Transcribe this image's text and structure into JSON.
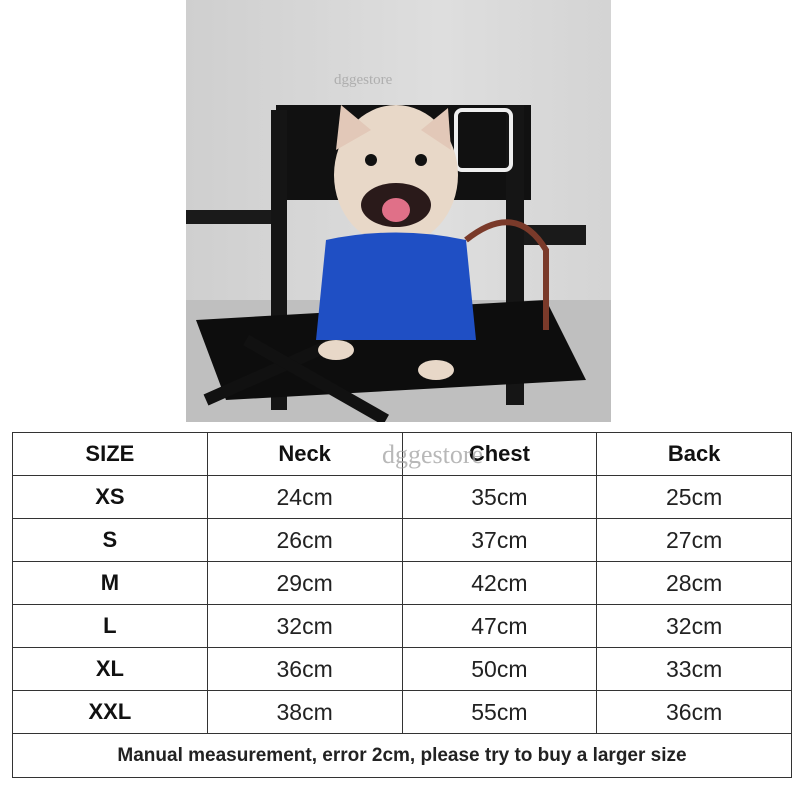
{
  "photo": {
    "watermark": "dggestore",
    "sweater_color": "#1f4fc4"
  },
  "table": {
    "headers": [
      "SIZE",
      "Neck",
      "Chest",
      "Back"
    ],
    "rows": [
      [
        "XS",
        "24cm",
        "35cm",
        "25cm"
      ],
      [
        "S",
        "26cm",
        "37cm",
        "27cm"
      ],
      [
        "M",
        "29cm",
        "42cm",
        "28cm"
      ],
      [
        "L",
        "32cm",
        "47cm",
        "32cm"
      ],
      [
        "XL",
        "36cm",
        "50cm",
        "33cm"
      ],
      [
        "XXL",
        "38cm",
        "55cm",
        "36cm"
      ]
    ],
    "note": "Manual measurement, error 2cm, please try to buy a larger size",
    "watermark": "dggestore"
  }
}
